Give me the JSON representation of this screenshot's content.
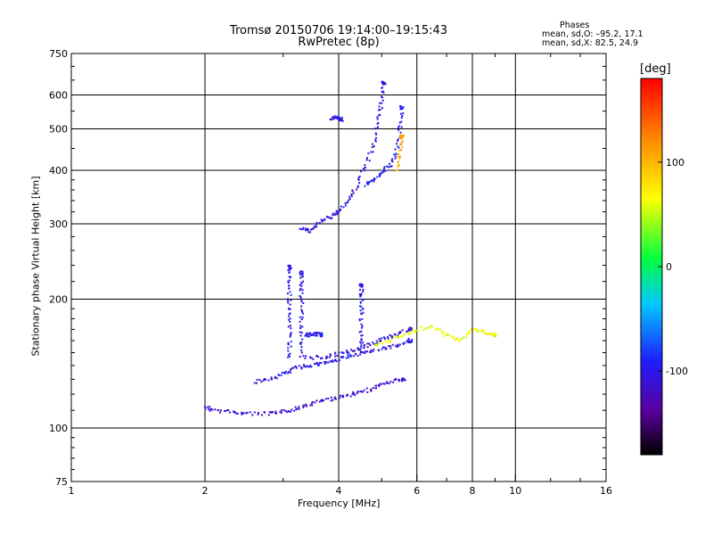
{
  "header": {
    "title_line1": "Tromsø 20150706 19:14:00–19:15:43",
    "title_line2": "RwPretec (8p)"
  },
  "stats": {
    "heading": "Phases",
    "o_mode": "mean, sd,O: –95.2, 17.1",
    "x_mode": "mean, sd,X:  82.5, 24.9"
  },
  "colors": {
    "frame": "#000000",
    "background": "#ffffff",
    "dominant_trace": "#1a2ae0"
  },
  "chart_data": {
    "type": "scatter",
    "xlabel": "Frequency [MHz]",
    "ylabel": "Stationary phase Virtual Height [km]",
    "xscale": "log",
    "yscale": "log",
    "xlim": [
      1,
      16
    ],
    "ylim": [
      75,
      750
    ],
    "xticks": [
      1,
      2,
      4,
      6,
      8,
      10,
      16
    ],
    "xticklabels": [
      "1",
      "2",
      "4",
      "6",
      "8",
      "10",
      "16"
    ],
    "yticks": [
      75,
      100,
      200,
      300,
      400,
      500,
      600,
      750
    ],
    "yticklabels": [
      "75",
      "100",
      "200",
      "300",
      "400",
      "500",
      "600",
      "750"
    ],
    "grid": true,
    "colorbar": {
      "label": "[deg]",
      "range": [
        -180,
        180
      ],
      "ticks": [
        100,
        0,
        -100
      ],
      "ticklabels": [
        "100",
        "0",
        "-100"
      ],
      "colormap": "rainbow"
    },
    "segments": [
      {
        "name": "ground-wave",
        "f": [
          2.0,
          2.1,
          2.3,
          2.5,
          2.8,
          3.0,
          3.2,
          3.4,
          3.7,
          4.0,
          4.3,
          4.6,
          4.9,
          5.2,
          5.6
        ],
        "h": [
          112,
          110,
          109,
          108,
          108,
          109,
          111,
          113,
          116,
          118,
          120,
          122,
          125,
          128,
          130
        ],
        "phase": -110
      },
      {
        "name": "lower-trace-a",
        "f": [
          2.6,
          2.8,
          3.0,
          3.2,
          3.4,
          3.6,
          3.8,
          4.0,
          4.3,
          4.6,
          5.0,
          5.4,
          5.8
        ],
        "h": [
          128,
          130,
          134,
          138,
          140,
          141,
          142,
          145,
          148,
          150,
          153,
          156,
          160
        ],
        "phase": -100
      },
      {
        "name": "lower-trace-b",
        "f": [
          3.3,
          3.6,
          3.9,
          4.2,
          4.5,
          4.8,
          5.1,
          5.4,
          5.8
        ],
        "h": [
          146,
          146,
          148,
          151,
          154,
          158,
          162,
          166,
          170
        ],
        "phase": -105
      },
      {
        "name": "spur-3.1",
        "f": [
          3.1,
          3.1,
          3.1,
          3.1,
          3.1,
          3.1
        ],
        "h": [
          145,
          160,
          180,
          200,
          220,
          238
        ],
        "phase": -100
      },
      {
        "name": "spur-3.3",
        "f": [
          3.3,
          3.3,
          3.3,
          3.3,
          3.3
        ],
        "h": [
          150,
          170,
          190,
          210,
          230
        ],
        "phase": -105
      },
      {
        "name": "spur-4.5",
        "f": [
          4.5,
          4.5,
          4.5,
          4.5,
          4.5
        ],
        "h": [
          150,
          165,
          185,
          200,
          215
        ],
        "phase": -100
      },
      {
        "name": "midlevel-3.4",
        "f": [
          3.35,
          3.45,
          3.55,
          3.65
        ],
        "h": [
          165,
          165,
          166,
          165
        ],
        "phase": -100
      },
      {
        "name": "F-layer-O",
        "f": [
          3.3,
          3.45,
          3.6,
          3.8,
          4.0,
          4.2,
          4.4,
          4.6,
          4.8,
          4.9,
          5.0,
          5.05
        ],
        "h": [
          292,
          288,
          300,
          310,
          320,
          340,
          370,
          410,
          460,
          520,
          580,
          640
        ],
        "phase": -105
      },
      {
        "name": "F-layer-X",
        "f": [
          4.6,
          4.8,
          5.0,
          5.2,
          5.4,
          5.5,
          5.55
        ],
        "h": [
          370,
          380,
          395,
          410,
          440,
          500,
          560
        ],
        "phase": -95
      },
      {
        "name": "cusp-5.5",
        "f": [
          5.4,
          5.5,
          5.55
        ],
        "h": [
          400,
          440,
          480
        ],
        "phase": 110
      },
      {
        "name": "x-echoes",
        "f": [
          4.8,
          5.2,
          5.6,
          6.0,
          6.5,
          7.0,
          7.5,
          8.0,
          8.5,
          9.0
        ],
        "h": [
          155,
          160,
          165,
          170,
          172,
          165,
          160,
          170,
          168,
          165
        ],
        "phase": 60
      },
      {
        "name": "near-4",
        "f": [
          3.85,
          3.95,
          4.05
        ],
        "h": [
          528,
          532,
          526
        ],
        "phase": -100
      }
    ]
  }
}
